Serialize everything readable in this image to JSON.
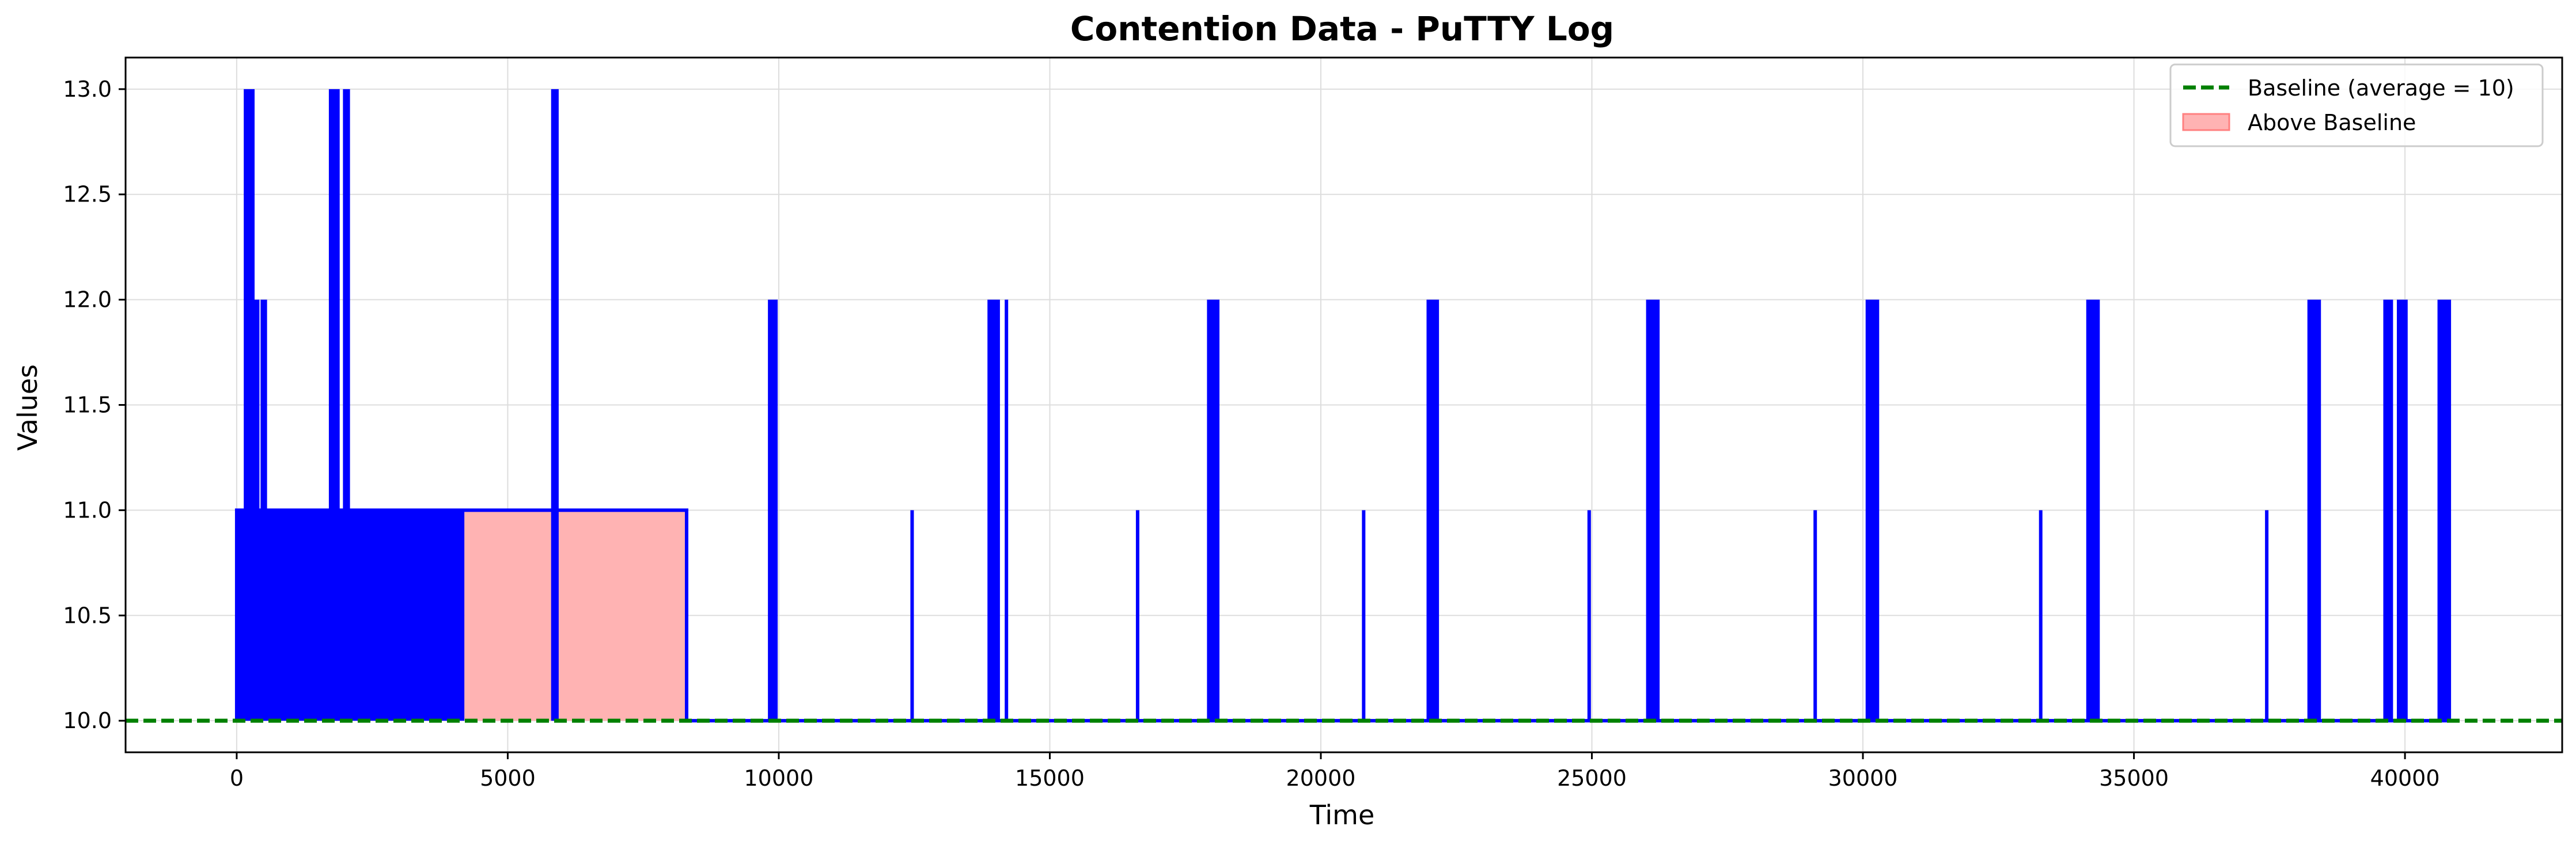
{
  "chart_data": {
    "type": "line",
    "title": "Contention Data - PuTTY Log",
    "xlabel": "Time",
    "ylabel": "Values",
    "xlim": [
      -2050,
      42900
    ],
    "ylim": [
      9.85,
      13.15
    ],
    "xticks": [
      0,
      5000,
      10000,
      15000,
      20000,
      25000,
      30000,
      35000,
      40000
    ],
    "xtick_labels": [
      "0",
      "5000",
      "10000",
      "15000",
      "20000",
      "25000",
      "30000",
      "35000",
      "40000"
    ],
    "yticks": [
      10.0,
      10.5,
      11.0,
      11.5,
      12.0,
      12.5,
      13.0
    ],
    "ytick_labels": [
      "10.0",
      "10.5",
      "11.0",
      "11.5",
      "12.0",
      "12.5",
      "13.0"
    ],
    "grid": true,
    "legend_position": "top-right",
    "series": [
      {
        "name": "",
        "color": "#0000ff",
        "style": "line",
        "dense_blocks": [
          {
            "x": [
              0,
              4200
            ],
            "y": [
              10,
              11
            ]
          }
        ],
        "spikes": [
          {
            "x": 130,
            "xw": 200,
            "ymax": 13,
            "dense": true
          },
          {
            "x": 300,
            "xw": 120,
            "ymax": 12,
            "dense": true
          },
          {
            "x": 440,
            "xw": 120,
            "ymax": 12,
            "dense": true
          },
          {
            "x": 1700,
            "xw": 200,
            "ymax": 13,
            "dense": true
          },
          {
            "x": 1960,
            "xw": 130,
            "ymax": 13,
            "dense": true
          },
          {
            "x": 5800,
            "xw": 140,
            "ymax": 13,
            "dense": true
          },
          {
            "x": 9800,
            "xw": 180,
            "ymax": 12,
            "dense": true
          },
          {
            "x": 12460,
            "xw": 0,
            "ymax": 11,
            "dense": false
          },
          {
            "x": 13850,
            "xw": 230,
            "ymax": 12,
            "dense": true
          },
          {
            "x": 14200,
            "xw": 0,
            "ymax": 12,
            "dense": false
          },
          {
            "x": 16620,
            "xw": 0,
            "ymax": 11,
            "dense": false
          },
          {
            "x": 17900,
            "xw": 230,
            "ymax": 12,
            "dense": true
          },
          {
            "x": 20790,
            "xw": 0,
            "ymax": 11,
            "dense": false
          },
          {
            "x": 21950,
            "xw": 230,
            "ymax": 12,
            "dense": true
          },
          {
            "x": 24950,
            "xw": 0,
            "ymax": 11,
            "dense": false
          },
          {
            "x": 26000,
            "xw": 250,
            "ymax": 12,
            "dense": true
          },
          {
            "x": 29120,
            "xw": 0,
            "ymax": 11,
            "dense": false
          },
          {
            "x": 30050,
            "xw": 250,
            "ymax": 12,
            "dense": true
          },
          {
            "x": 33280,
            "xw": 0,
            "ymax": 11,
            "dense": false
          },
          {
            "x": 34120,
            "xw": 250,
            "ymax": 12,
            "dense": true
          },
          {
            "x": 37450,
            "xw": 0,
            "ymax": 11,
            "dense": false
          },
          {
            "x": 38200,
            "xw": 250,
            "ymax": 12,
            "dense": true
          },
          {
            "x": 39600,
            "xw": 180,
            "ymax": 12,
            "dense": true
          },
          {
            "x": 39850,
            "xw": 200,
            "ymax": 12,
            "dense": true
          },
          {
            "x": 40600,
            "xw": 250,
            "ymax": 12,
            "dense": true
          }
        ],
        "outline": [
          [
            0,
            10
          ],
          [
            0,
            11
          ],
          [
            8300,
            11
          ],
          [
            8300,
            10
          ],
          [
            40900,
            10
          ]
        ]
      },
      {
        "name": "Baseline (average = 10)",
        "color": "#008000",
        "style": "dashed",
        "y": 10
      },
      {
        "name": "Above Baseline",
        "color": "#ffb3b3",
        "style": "fill",
        "x": [
          4200,
          8300
        ],
        "y": [
          10,
          11
        ]
      }
    ]
  }
}
